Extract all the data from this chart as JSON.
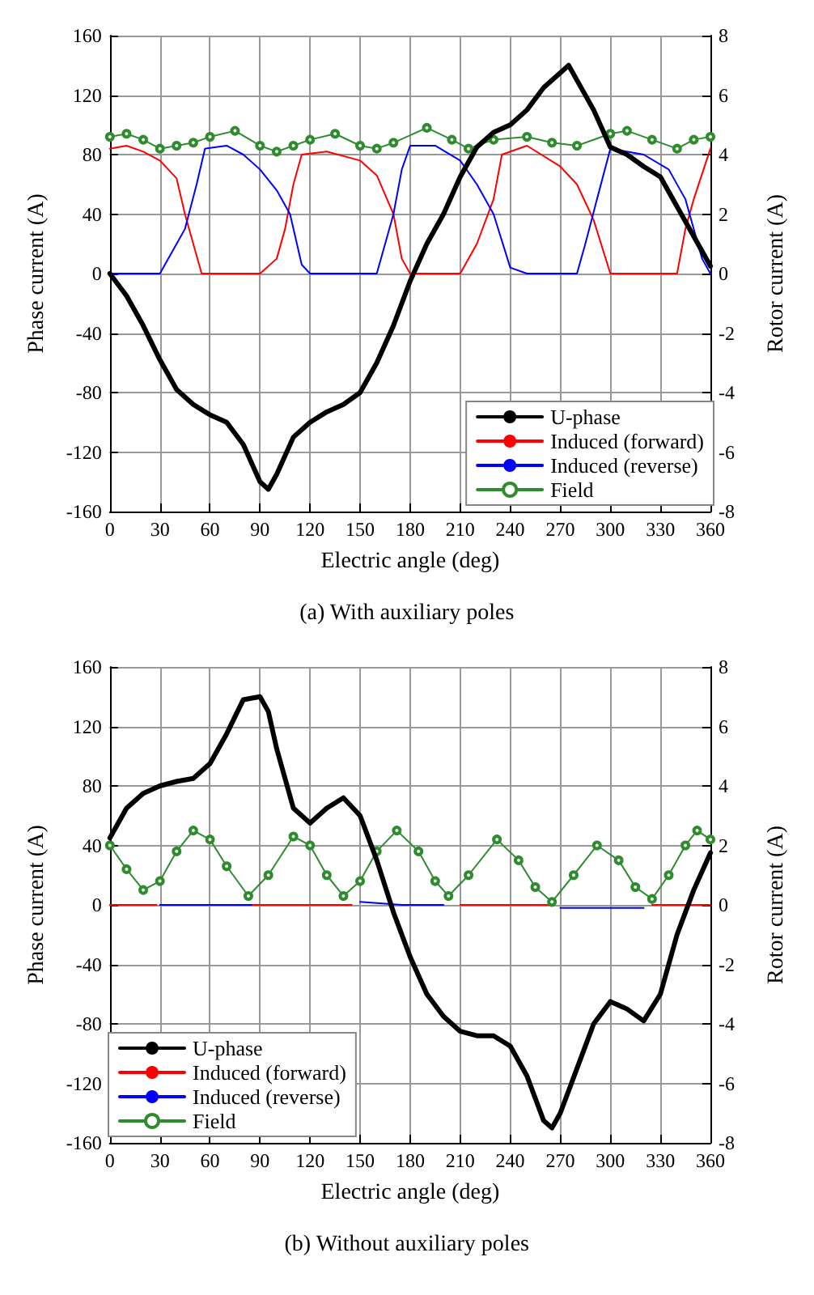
{
  "chart_data": [
    {
      "type": "line",
      "xlabel": "Electric angle (deg)",
      "ylabel": "Phase current (A)",
      "y2label": "Rotor current (A)",
      "annotations": [
        "(a) With auxiliary poles"
      ],
      "xlim": [
        0,
        360
      ],
      "xticks": [
        0,
        30,
        60,
        90,
        120,
        150,
        180,
        210,
        240,
        270,
        300,
        330,
        360
      ],
      "ylim": [
        -160,
        160
      ],
      "yticks": [
        -160,
        -120,
        -80,
        -40,
        0,
        40,
        80,
        120,
        160
      ],
      "y2lim": [
        -8,
        8
      ],
      "y2ticks": [
        -8,
        -6,
        -4,
        -2,
        0,
        2,
        4,
        6,
        8
      ],
      "grid": true,
      "legend": "bottom right",
      "marker": "none",
      "line_style": "solid",
      "series": [
        {
          "name": "U-phase",
          "color": "#000000",
          "x": [
            0,
            10,
            20,
            30,
            40,
            50,
            60,
            70,
            80,
            90,
            95,
            100,
            110,
            120,
            130,
            140,
            150,
            160,
            170,
            180,
            190,
            200,
            210,
            220,
            230,
            240,
            250,
            260,
            270,
            275,
            280,
            290,
            300,
            310,
            320,
            330,
            340,
            350,
            360
          ],
          "values": [
            0,
            -15,
            -35,
            -58,
            -78,
            -88,
            -95,
            -100,
            -115,
            -140,
            -145,
            -135,
            -110,
            -100,
            -93,
            -88,
            -80,
            -60,
            -35,
            -5,
            20,
            40,
            65,
            85,
            95,
            100,
            110,
            125,
            135,
            140,
            130,
            110,
            85,
            80,
            72,
            65,
            45,
            25,
            5
          ]
        },
        {
          "name": "Induced (forward)",
          "color": "#ff0000",
          "axis": "y2",
          "x": [
            0,
            10,
            20,
            30,
            40,
            45,
            50,
            55,
            70,
            90,
            100,
            105,
            110,
            115,
            130,
            150,
            160,
            170,
            175,
            180,
            210,
            220,
            230,
            235,
            250,
            270,
            280,
            290,
            300,
            340,
            345,
            350,
            360
          ],
          "values": [
            4.2,
            4.3,
            4.1,
            3.8,
            3.2,
            2.0,
            1.0,
            0,
            0,
            0,
            0.5,
            1.5,
            3,
            4.0,
            4.1,
            3.8,
            3.3,
            2,
            0.5,
            0,
            0,
            1,
            2.5,
            4,
            4.3,
            3.6,
            3.0,
            1.8,
            0,
            0,
            1.5,
            2.5,
            4.2
          ]
        },
        {
          "name": "Induced (reverse)",
          "color": "#0000ff",
          "axis": "y2",
          "x": [
            0,
            30,
            40,
            45,
            52,
            57,
            70,
            80,
            90,
            100,
            108,
            115,
            120,
            160,
            165,
            170,
            175,
            180,
            195,
            210,
            220,
            230,
            240,
            250,
            280,
            285,
            292,
            300,
            320,
            335,
            345,
            355,
            360
          ],
          "values": [
            0,
            0,
            1,
            1.5,
            3,
            4.2,
            4.3,
            4.0,
            3.5,
            2.8,
            2,
            0.3,
            0,
            0,
            1,
            2,
            3.5,
            4.3,
            4.3,
            3.8,
            3.0,
            2,
            0.2,
            0,
            0,
            1,
            2.5,
            4.2,
            4,
            3.5,
            2.5,
            0.5,
            0
          ]
        },
        {
          "name": "Field",
          "color": "#2e8b2e",
          "axis": "y2",
          "marker": "circle",
          "x": [
            0,
            10,
            20,
            30,
            40,
            50,
            60,
            75,
            90,
            100,
            110,
            120,
            135,
            150,
            160,
            170,
            190,
            205,
            215,
            230,
            250,
            265,
            280,
            300,
            310,
            325,
            340,
            350,
            360
          ],
          "values": [
            4.6,
            4.7,
            4.5,
            4.2,
            4.3,
            4.4,
            4.6,
            4.8,
            4.3,
            4.1,
            4.3,
            4.5,
            4.7,
            4.3,
            4.2,
            4.4,
            4.9,
            4.5,
            4.2,
            4.5,
            4.6,
            4.4,
            4.3,
            4.7,
            4.8,
            4.5,
            4.2,
            4.5,
            4.6
          ]
        }
      ]
    },
    {
      "type": "line",
      "xlabel": "Electric angle (deg)",
      "ylabel": "Phase current (A)",
      "y2label": "Rotor current (A)",
      "annotations": [
        "(b) Without auxiliary poles"
      ],
      "xlim": [
        0,
        360
      ],
      "xticks": [
        0,
        30,
        60,
        90,
        120,
        150,
        180,
        210,
        240,
        270,
        300,
        330,
        360
      ],
      "ylim": [
        -160,
        160
      ],
      "yticks": [
        -160,
        -120,
        -80,
        -40,
        0,
        40,
        80,
        120,
        160
      ],
      "y2lim": [
        -8,
        8
      ],
      "y2ticks": [
        -8,
        -6,
        -4,
        -2,
        0,
        2,
        4,
        6,
        8
      ],
      "grid": true,
      "legend": "bottom left",
      "marker": "none",
      "line_style": "solid",
      "series": [
        {
          "name": "U-phase",
          "color": "#000000",
          "x": [
            0,
            10,
            20,
            30,
            40,
            50,
            60,
            70,
            80,
            90,
            95,
            100,
            110,
            120,
            130,
            140,
            150,
            160,
            170,
            180,
            190,
            200,
            210,
            220,
            230,
            240,
            250,
            260,
            265,
            270,
            280,
            290,
            300,
            310,
            320,
            330,
            340,
            350,
            360
          ],
          "values": [
            45,
            65,
            75,
            80,
            83,
            85,
            95,
            115,
            138,
            140,
            130,
            105,
            65,
            55,
            65,
            72,
            60,
            30,
            -5,
            -35,
            -60,
            -75,
            -85,
            -88,
            -88,
            -95,
            -115,
            -145,
            -150,
            -140,
            -110,
            -80,
            -65,
            -70,
            -78,
            -60,
            -20,
            10,
            35
          ]
        },
        {
          "name": "Induced (forward)",
          "color": "#ff0000",
          "axis": "y2",
          "x": [
            0,
            14,
            28,
            29,
            85,
            115,
            145,
            146,
            210,
            238,
            265,
            266,
            325,
            343,
            360
          ],
          "values": [
            0,
            0,
            0,
            null,
            0,
            0,
            0,
            null,
            0,
            0,
            0,
            null,
            0,
            0,
            0
          ]
        },
        {
          "name": "Induced (reverse)",
          "color": "#0000ff",
          "axis": "y2",
          "x": [
            30,
            57,
            85,
            86,
            150,
            175,
            200,
            201,
            270,
            295,
            320
          ],
          "values": [
            0,
            0,
            0,
            null,
            0.1,
            0,
            0,
            null,
            -0.1,
            -0.1,
            -0.1
          ]
        },
        {
          "name": "Field",
          "color": "#2e8b2e",
          "axis": "y2",
          "marker": "circle",
          "x": [
            0,
            10,
            20,
            30,
            40,
            50,
            60,
            70,
            83,
            95,
            110,
            120,
            130,
            140,
            150,
            160,
            172,
            185,
            195,
            203,
            215,
            232,
            245,
            255,
            265,
            278,
            292,
            305,
            315,
            325,
            335,
            345,
            352,
            360
          ],
          "values": [
            2.0,
            1.2,
            0.5,
            0.8,
            1.8,
            2.5,
            2.2,
            1.3,
            0.3,
            1.0,
            2.3,
            2.0,
            1.0,
            0.3,
            0.8,
            1.8,
            2.5,
            1.8,
            0.8,
            0.3,
            1.0,
            2.2,
            1.5,
            0.6,
            0.1,
            1.0,
            2.0,
            1.5,
            0.6,
            0.2,
            1.0,
            2.0,
            2.5,
            2.2
          ]
        }
      ]
    }
  ]
}
